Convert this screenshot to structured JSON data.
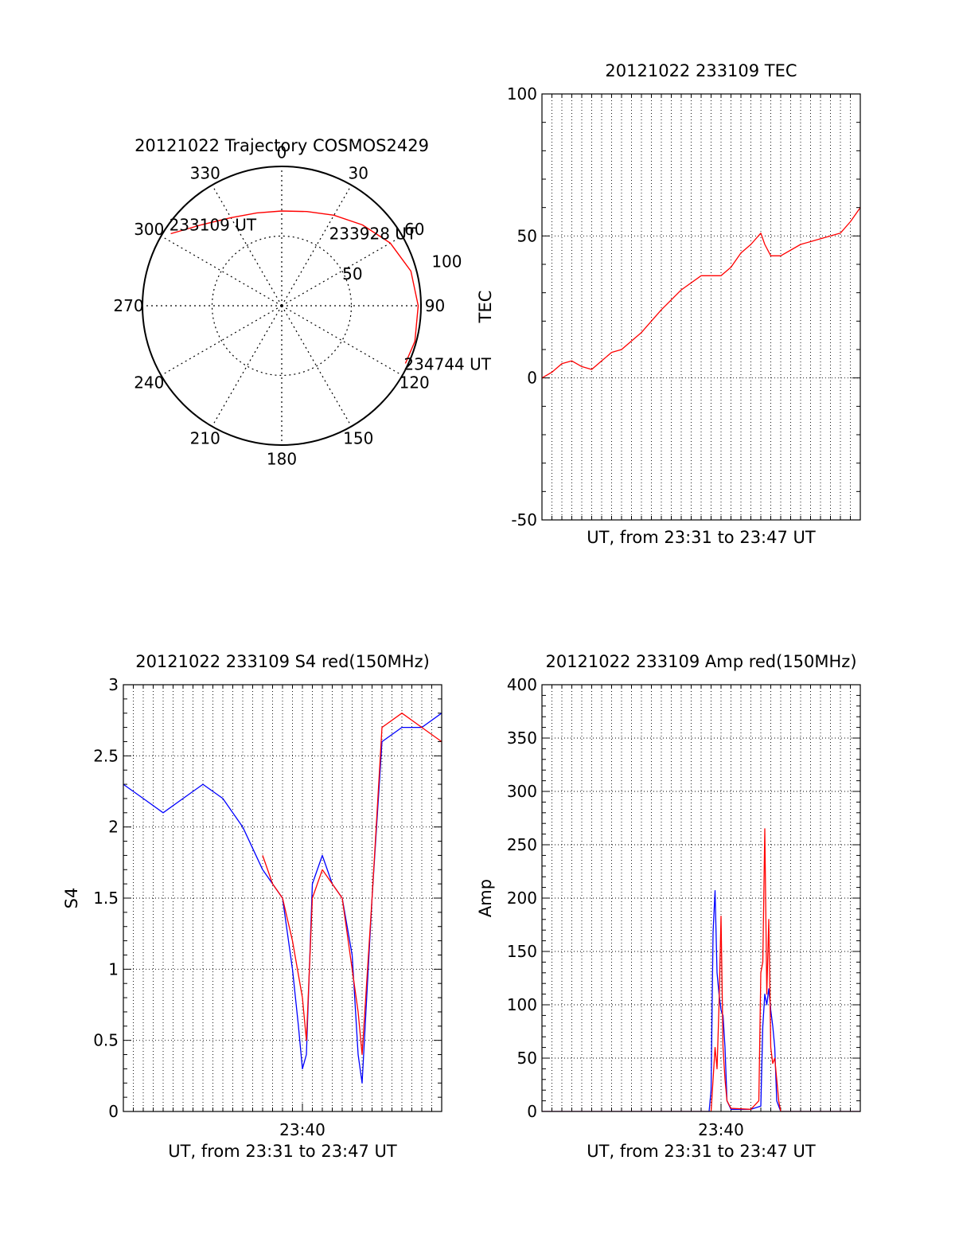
{
  "colors": {
    "red": "#ff0000",
    "blue": "#0000ff",
    "axis": "#000000",
    "grid": "#000000"
  },
  "chart_data": [
    {
      "type": "polar",
      "title": "20121022 Trajectory COSMOS2429",
      "azimuth_labels": [
        "0",
        "30",
        "60",
        "90",
        "120",
        "150",
        "180",
        "210",
        "240",
        "270",
        "300",
        "330"
      ],
      "radius_labels": [
        "50",
        "100"
      ],
      "series": [
        {
          "color": "red",
          "points": [
            {
              "az": 303,
              "r": 95
            },
            {
              "az": 315,
              "r": 82
            },
            {
              "az": 330,
              "r": 73
            },
            {
              "az": 345,
              "r": 69
            },
            {
              "az": 0,
              "r": 68
            },
            {
              "az": 15,
              "r": 70
            },
            {
              "az": 30,
              "r": 75
            },
            {
              "az": 45,
              "r": 82
            },
            {
              "az": 60,
              "r": 90
            },
            {
              "az": 75,
              "r": 96
            },
            {
              "az": 90,
              "r": 98
            },
            {
              "az": 105,
              "r": 99
            },
            {
              "az": 115,
              "r": 98
            }
          ]
        }
      ],
      "annotations": [
        {
          "text": "233109 UT",
          "az": 303,
          "r": 95
        },
        {
          "text": "233928 UT",
          "az": 53,
          "r": 87
        },
        {
          "text": "234744 UT",
          "az": 115,
          "r": 98
        }
      ]
    },
    {
      "type": "line",
      "title": "20121022 233109 TEC",
      "xlabel": "UT, from 23:31 to 23:47 UT",
      "ylabel": "TEC",
      "xlim": [
        0,
        16
      ],
      "ylim": [
        -50,
        100
      ],
      "yticks": [
        "-50",
        "0",
        "50",
        "100"
      ],
      "grid": true,
      "series": [
        {
          "color": "red",
          "x": [
            0,
            0.5,
            1,
            1.5,
            2,
            2.5,
            3,
            3.5,
            4,
            5,
            6,
            7,
            8,
            9,
            9.5,
            10,
            10.5,
            11,
            11.2,
            11.5,
            12,
            13,
            14,
            15,
            15.5,
            16
          ],
          "y": [
            0,
            2,
            5,
            6,
            4,
            3,
            6,
            9,
            10,
            16,
            24,
            31,
            36,
            36,
            39,
            44,
            47,
            51,
            47,
            43,
            43,
            47,
            49,
            51,
            55,
            60
          ]
        }
      ]
    },
    {
      "type": "line",
      "title": "20121022 233109 S4 red(150MHz)",
      "xlabel": "UT, from 23:31 to 23:47 UT",
      "ylabel": "S4",
      "xlim": [
        0,
        16
      ],
      "ylim": [
        0,
        3
      ],
      "yticks": [
        "0",
        "0.5",
        "1",
        "1.5",
        "2",
        "2.5",
        "3"
      ],
      "xtick_value": 9,
      "xtick_label": "23:40",
      "grid": true,
      "series": [
        {
          "color": "blue",
          "x": [
            0,
            1,
            2,
            3,
            4,
            5,
            6,
            7,
            8,
            8.5,
            8.8,
            9,
            9.2,
            9.5,
            10,
            10.5,
            11,
            11.5,
            11.8,
            12,
            12.5,
            13,
            14,
            15,
            16
          ],
          "y": [
            2.3,
            2.2,
            2.1,
            2.2,
            2.3,
            2.2,
            2.0,
            1.7,
            1.5,
            1.0,
            0.6,
            0.3,
            0.4,
            1.6,
            1.8,
            1.6,
            1.5,
            1.1,
            0.4,
            0.2,
            1.5,
            2.6,
            2.7,
            2.7,
            2.8
          ]
        },
        {
          "color": "red",
          "x": [
            7,
            7.5,
            8,
            8.5,
            9,
            9.2,
            9.5,
            10,
            10.5,
            11,
            11.5,
            11.8,
            12,
            12.5,
            13,
            14,
            15,
            16
          ],
          "y": [
            1.8,
            1.6,
            1.5,
            1.2,
            0.8,
            0.5,
            1.5,
            1.7,
            1.6,
            1.5,
            1.0,
            0.7,
            0.4,
            1.5,
            2.7,
            2.8,
            2.7,
            2.6
          ]
        }
      ]
    },
    {
      "type": "line",
      "title": "20121022 233109 Amp red(150MHz)",
      "xlabel": "UT, from 23:31 to 23:47 UT",
      "ylabel": "Amp",
      "xlim": [
        0,
        16
      ],
      "ylim": [
        0,
        400
      ],
      "yticks": [
        "0",
        "50",
        "100",
        "150",
        "200",
        "250",
        "300",
        "350",
        "400"
      ],
      "xtick_value": 9,
      "xtick_label": "23:40",
      "grid": true,
      "series": [
        {
          "color": "blue",
          "x": [
            0,
            8.4,
            8.5,
            8.6,
            8.7,
            8.8,
            8.9,
            9.0,
            9.1,
            9.2,
            9.3,
            9.5,
            10.5,
            11.0,
            11.1,
            11.2,
            11.3,
            11.4,
            11.5,
            11.6,
            11.7,
            11.8,
            12,
            16
          ],
          "y": [
            0,
            0,
            20,
            168,
            207,
            130,
            110,
            95,
            90,
            60,
            10,
            2,
            2,
            5,
            80,
            110,
            100,
            115,
            95,
            80,
            60,
            10,
            0,
            0
          ]
        },
        {
          "color": "red",
          "x": [
            0,
            8.5,
            8.6,
            8.7,
            8.8,
            8.9,
            9.0,
            9.1,
            9.2,
            9.3,
            9.5,
            10.5,
            10.9,
            11.0,
            11.1,
            11.2,
            11.3,
            11.4,
            11.5,
            11.6,
            11.7,
            11.9,
            12,
            16
          ],
          "y": [
            0,
            0,
            30,
            60,
            40,
            100,
            183,
            60,
            30,
            10,
            3,
            2,
            10,
            130,
            140,
            265,
            110,
            180,
            60,
            45,
            50,
            10,
            0,
            0
          ]
        }
      ]
    }
  ]
}
